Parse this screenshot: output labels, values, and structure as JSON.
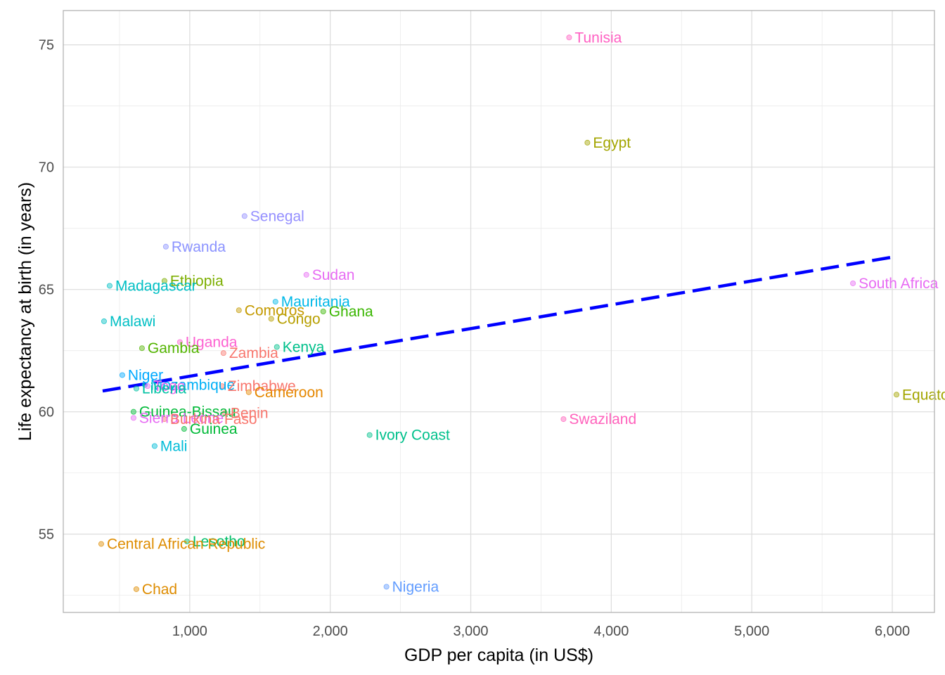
{
  "chart_data": {
    "type": "scatter",
    "title": "",
    "xlabel": "GDP per capita (in US$)",
    "ylabel": "Life expectancy at birth (in years)",
    "xlim": [
      100,
      6300
    ],
    "ylim": [
      51.8,
      76.4
    ],
    "x_ticks": [
      1000,
      2000,
      3000,
      4000,
      5000,
      6000
    ],
    "x_tick_labels": [
      "1,000",
      "2,000",
      "3,000",
      "4,000",
      "5,000",
      "6,000"
    ],
    "y_ticks": [
      55,
      60,
      65,
      70,
      75
    ],
    "y_tick_labels": [
      "55",
      "60",
      "65",
      "70",
      "75"
    ],
    "grid": true,
    "legend": "none",
    "trend_line": {
      "style": "dashed",
      "color": "#0000ff",
      "points": [
        [
          380,
          60.85
        ],
        [
          6030,
          66.35
        ]
      ]
    },
    "points": [
      {
        "name": "Tunisia",
        "x": 3700,
        "y": 75.3,
        "color": "#ff61c3"
      },
      {
        "name": "Egypt",
        "x": 3830,
        "y": 71.0,
        "color": "#a3a500"
      },
      {
        "name": "Senegal",
        "x": 1390,
        "y": 68.0,
        "color": "#9590ff"
      },
      {
        "name": "Rwanda",
        "x": 830,
        "y": 66.75,
        "color": "#8b93ff"
      },
      {
        "name": "Sudan",
        "x": 1830,
        "y": 65.6,
        "color": "#e76bf3"
      },
      {
        "name": "Ethiopia",
        "x": 820,
        "y": 65.35,
        "color": "#7cae00"
      },
      {
        "name": "Madagascar",
        "x": 430,
        "y": 65.15,
        "color": "#00bfc4"
      },
      {
        "name": "South Africa",
        "x": 5720,
        "y": 65.25,
        "color": "#e76bf3"
      },
      {
        "name": "Mauritania",
        "x": 1610,
        "y": 64.5,
        "color": "#00b8e7"
      },
      {
        "name": "Comoros",
        "x": 1350,
        "y": 64.15,
        "color": "#c49a00"
      },
      {
        "name": "Ghana",
        "x": 1950,
        "y": 64.1,
        "color": "#39b600"
      },
      {
        "name": "Congo",
        "x": 1580,
        "y": 63.8,
        "color": "#b79f00"
      },
      {
        "name": "Malawi",
        "x": 390,
        "y": 63.7,
        "color": "#00bfc4"
      },
      {
        "name": "Uganda",
        "x": 930,
        "y": 62.85,
        "color": "#fd61d1"
      },
      {
        "name": "Gambia",
        "x": 660,
        "y": 62.6,
        "color": "#53b400"
      },
      {
        "name": "Kenya",
        "x": 1620,
        "y": 62.65,
        "color": "#00c08b"
      },
      {
        "name": "Zambia",
        "x": 1240,
        "y": 62.4,
        "color": "#f8766d"
      },
      {
        "name": "Niger",
        "x": 520,
        "y": 61.5,
        "color": "#00a9ff"
      },
      {
        "name": "Mozambique",
        "x": 680,
        "y": 61.1,
        "color": "#00b0f6"
      },
      {
        "name": "Togo",
        "x": 700,
        "y": 61.05,
        "color": "#ef67eb"
      },
      {
        "name": "Liberia",
        "x": 620,
        "y": 60.95,
        "color": "#00c1a3"
      },
      {
        "name": "Zimbabwe",
        "x": 1230,
        "y": 61.05,
        "color": "#f8766d"
      },
      {
        "name": "Cameroon",
        "x": 1420,
        "y": 60.8,
        "color": "#e58700"
      },
      {
        "name": "Equatorial Guinea",
        "x": 6030,
        "y": 60.7,
        "color": "#a3a500"
      },
      {
        "name": "Guinea-Bissau",
        "x": 600,
        "y": 60.0,
        "color": "#00ba38"
      },
      {
        "name": "Benin",
        "x": 1250,
        "y": 59.95,
        "color": "#f8766d"
      },
      {
        "name": "Sierra Leone",
        "x": 600,
        "y": 59.75,
        "color": "#e76bf3"
      },
      {
        "name": "Burkina Faso",
        "x": 820,
        "y": 59.7,
        "color": "#f8766d"
      },
      {
        "name": "Swaziland",
        "x": 3660,
        "y": 59.7,
        "color": "#ff62bc"
      },
      {
        "name": "Guinea",
        "x": 960,
        "y": 59.3,
        "color": "#00ba38"
      },
      {
        "name": "Ivory Coast",
        "x": 2280,
        "y": 59.05,
        "color": "#00c08b"
      },
      {
        "name": "Mali",
        "x": 750,
        "y": 58.6,
        "color": "#00bcd8"
      },
      {
        "name": "Lesotho",
        "x": 980,
        "y": 54.7,
        "color": "#00be67"
      },
      {
        "name": "Central African Republic",
        "x": 370,
        "y": 54.6,
        "color": "#de8c00"
      },
      {
        "name": "Chad",
        "x": 620,
        "y": 52.75,
        "color": "#de8c00"
      },
      {
        "name": "Nigeria",
        "x": 2400,
        "y": 52.85,
        "color": "#619cff"
      }
    ]
  }
}
